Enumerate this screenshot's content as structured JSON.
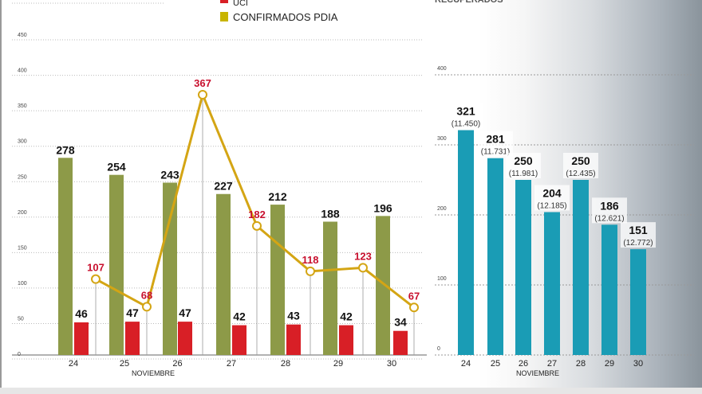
{
  "chart_data": [
    {
      "type": "bar+line",
      "legend": [
        {
          "name": "UCI (partial, cut off)",
          "color": "#d81f26",
          "label": "UCI"
        },
        {
          "name": "CONFIRMADOS PDIA",
          "color": "#c8b400"
        }
      ],
      "categories": [
        "24",
        "25",
        "26",
        "27",
        "28",
        "29",
        "30"
      ],
      "xlabel": "NOVIEMBRE",
      "ylim": [
        0,
        450
      ],
      "yticks": [
        0,
        50,
        100,
        150,
        200,
        250,
        300,
        350,
        400,
        450
      ],
      "series": [
        {
          "name": "green bars",
          "type": "bar",
          "color": "#8d9a48",
          "values": [
            278,
            254,
            243,
            227,
            212,
            188,
            196
          ]
        },
        {
          "name": "red bars",
          "type": "bar",
          "color": "#d81f26",
          "values": [
            46,
            47,
            47,
            42,
            43,
            42,
            34
          ]
        },
        {
          "name": "CONFIRMADOS PDIA",
          "type": "line",
          "color": "#d4a514",
          "values": [
            107,
            68,
            367,
            182,
            118,
            123,
            67
          ]
        }
      ]
    },
    {
      "type": "bar",
      "title": "RECUPERADOS",
      "categories": [
        "24",
        "25",
        "26",
        "27",
        "28",
        "29",
        "30"
      ],
      "xlabel": "NOVIEMBRE",
      "ylim": [
        0,
        400
      ],
      "yticks": [
        0,
        100,
        200,
        300,
        400
      ],
      "color": "#1a9cb5",
      "values": [
        321,
        281,
        250,
        204,
        250,
        186,
        151
      ],
      "cumulative": [
        "(11.450)",
        "(11.731)",
        "(11.981)",
        "(12.185)",
        "(12.435)",
        "(12.621)",
        "(12.772)"
      ]
    }
  ]
}
